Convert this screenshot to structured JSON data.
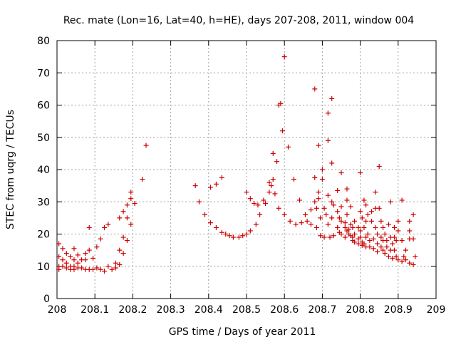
{
  "chart_data": {
    "type": "scatter",
    "title": "Rec. mate (Lon=16, Lat=40, h=HE), days 207-208, 2011, window 004",
    "xlabel": "GPS time / Days of year 2011",
    "ylabel": "STEC from uqrg / TECUs",
    "xlim": [
      208,
      209
    ],
    "ylim": [
      0,
      80
    ],
    "xticks": [
      "208",
      "208.1",
      "208.2",
      "208.3",
      "208.4",
      "208.5",
      "208.6",
      "208.7",
      "208.8",
      "208.9",
      "209"
    ],
    "yticks": [
      "0",
      "10",
      "20",
      "30",
      "40",
      "50",
      "60",
      "70",
      "80"
    ],
    "grid": true,
    "marker": "+",
    "color": "#cc0000",
    "series": [
      {
        "name": "STEC",
        "points": [
          [
            208.005,
            17
          ],
          [
            208.005,
            13
          ],
          [
            208.005,
            10
          ],
          [
            208.005,
            9
          ],
          [
            208.015,
            15.5
          ],
          [
            208.015,
            12
          ],
          [
            208.015,
            10
          ],
          [
            208.025,
            14
          ],
          [
            208.025,
            11
          ],
          [
            208.025,
            9.5
          ],
          [
            208.035,
            13
          ],
          [
            208.035,
            10
          ],
          [
            208.035,
            9
          ],
          [
            208.045,
            15.5
          ],
          [
            208.045,
            12
          ],
          [
            208.045,
            10
          ],
          [
            208.045,
            9
          ],
          [
            208.055,
            13.5
          ],
          [
            208.055,
            11
          ],
          [
            208.055,
            9.5
          ],
          [
            208.065,
            12
          ],
          [
            208.065,
            9.5
          ],
          [
            208.075,
            14
          ],
          [
            208.075,
            12
          ],
          [
            208.075,
            9
          ],
          [
            208.085,
            22
          ],
          [
            208.085,
            15
          ],
          [
            208.085,
            9
          ],
          [
            208.095,
            12.5
          ],
          [
            208.095,
            9
          ],
          [
            208.105,
            16
          ],
          [
            208.105,
            9.5
          ],
          [
            208.115,
            18.5
          ],
          [
            208.115,
            9
          ],
          [
            208.125,
            22
          ],
          [
            208.125,
            8.5
          ],
          [
            208.135,
            23
          ],
          [
            208.135,
            10
          ],
          [
            208.145,
            9
          ],
          [
            208.155,
            11
          ],
          [
            208.155,
            9.5
          ],
          [
            208.165,
            25
          ],
          [
            208.165,
            15
          ],
          [
            208.165,
            10.5
          ],
          [
            208.175,
            27
          ],
          [
            208.175,
            19
          ],
          [
            208.175,
            14
          ],
          [
            208.185,
            29
          ],
          [
            208.185,
            25
          ],
          [
            208.185,
            18
          ],
          [
            208.195,
            33
          ],
          [
            208.195,
            31
          ],
          [
            208.195,
            23
          ],
          [
            208.205,
            29.5
          ],
          [
            208.225,
            37
          ],
          [
            208.235,
            47.5
          ],
          [
            208.365,
            35
          ],
          [
            208.375,
            30
          ],
          [
            208.39,
            26
          ],
          [
            208.405,
            34.5
          ],
          [
            208.405,
            23.5
          ],
          [
            208.42,
            35.5
          ],
          [
            208.42,
            22
          ],
          [
            208.435,
            37.5
          ],
          [
            208.435,
            20.5
          ],
          [
            208.445,
            20
          ],
          [
            208.455,
            19.5
          ],
          [
            208.465,
            19
          ],
          [
            208.48,
            19
          ],
          [
            208.49,
            19.5
          ],
          [
            208.5,
            33
          ],
          [
            208.5,
            20
          ],
          [
            208.51,
            31
          ],
          [
            208.51,
            21
          ],
          [
            208.52,
            29.5
          ],
          [
            208.525,
            23
          ],
          [
            208.53,
            29
          ],
          [
            208.535,
            26
          ],
          [
            208.545,
            30.5
          ],
          [
            208.55,
            29.5
          ],
          [
            208.56,
            36
          ],
          [
            208.56,
            33
          ],
          [
            208.565,
            35
          ],
          [
            208.57,
            45
          ],
          [
            208.57,
            37
          ],
          [
            208.575,
            32.5
          ],
          [
            208.58,
            42.5
          ],
          [
            208.585,
            60
          ],
          [
            208.585,
            28
          ],
          [
            208.59,
            60.5
          ],
          [
            208.595,
            52
          ],
          [
            208.6,
            75
          ],
          [
            208.6,
            26
          ],
          [
            208.61,
            47
          ],
          [
            208.615,
            24
          ],
          [
            208.625,
            37
          ],
          [
            208.63,
            23
          ],
          [
            208.64,
            30.5
          ],
          [
            208.645,
            23.5
          ],
          [
            208.655,
            26
          ],
          [
            208.66,
            24
          ],
          [
            208.67,
            27.5
          ],
          [
            208.67,
            23
          ],
          [
            208.68,
            65
          ],
          [
            208.68,
            37.5
          ],
          [
            208.68,
            30
          ],
          [
            208.685,
            28
          ],
          [
            208.685,
            22
          ],
          [
            208.69,
            47.5
          ],
          [
            208.69,
            33
          ],
          [
            208.69,
            31
          ],
          [
            208.695,
            25
          ],
          [
            208.695,
            19.5
          ],
          [
            208.7,
            40
          ],
          [
            208.7,
            37
          ],
          [
            208.705,
            28
          ],
          [
            208.705,
            19
          ],
          [
            208.71,
            26
          ],
          [
            208.715,
            57.5
          ],
          [
            208.715,
            49
          ],
          [
            208.715,
            32
          ],
          [
            208.715,
            23
          ],
          [
            208.72,
            19
          ],
          [
            208.725,
            62
          ],
          [
            208.725,
            42
          ],
          [
            208.725,
            30
          ],
          [
            208.725,
            25
          ],
          [
            208.73,
            29
          ],
          [
            208.73,
            19.5
          ],
          [
            208.74,
            33.5
          ],
          [
            208.74,
            27
          ],
          [
            208.74,
            22
          ],
          [
            208.745,
            25
          ],
          [
            208.745,
            20.5
          ],
          [
            208.75,
            39
          ],
          [
            208.75,
            28.5
          ],
          [
            208.75,
            24
          ],
          [
            208.75,
            20
          ],
          [
            208.76,
            23.5
          ],
          [
            208.76,
            22
          ],
          [
            208.76,
            19
          ],
          [
            208.765,
            34
          ],
          [
            208.765,
            30.5
          ],
          [
            208.765,
            26
          ],
          [
            208.765,
            21
          ],
          [
            208.77,
            21.5
          ],
          [
            208.77,
            20
          ],
          [
            208.775,
            28.5
          ],
          [
            208.775,
            23
          ],
          [
            208.775,
            19.5
          ],
          [
            208.78,
            22
          ],
          [
            208.78,
            19
          ],
          [
            208.78,
            18
          ],
          [
            208.785,
            24
          ],
          [
            208.785,
            20
          ],
          [
            208.785,
            17.5
          ],
          [
            208.795,
            22
          ],
          [
            208.795,
            18.5
          ],
          [
            208.795,
            17
          ],
          [
            208.8,
            39
          ],
          [
            208.8,
            27
          ],
          [
            208.8,
            21
          ],
          [
            208.8,
            19
          ],
          [
            208.805,
            25
          ],
          [
            208.805,
            17.5
          ],
          [
            208.805,
            16.5
          ],
          [
            208.81,
            30.5
          ],
          [
            208.81,
            22
          ],
          [
            208.81,
            17
          ],
          [
            208.815,
            29
          ],
          [
            208.815,
            24
          ],
          [
            208.815,
            19
          ],
          [
            208.815,
            16
          ],
          [
            208.82,
            26
          ],
          [
            208.82,
            20
          ],
          [
            208.825,
            18
          ],
          [
            208.825,
            16
          ],
          [
            208.83,
            27
          ],
          [
            208.83,
            24
          ],
          [
            208.835,
            18.5
          ],
          [
            208.835,
            15.5
          ],
          [
            208.84,
            33
          ],
          [
            208.84,
            28
          ],
          [
            208.84,
            22
          ],
          [
            208.845,
            20
          ],
          [
            208.845,
            17
          ],
          [
            208.845,
            14.5
          ],
          [
            208.85,
            41
          ],
          [
            208.85,
            28
          ],
          [
            208.855,
            24
          ],
          [
            208.855,
            19
          ],
          [
            208.855,
            16
          ],
          [
            208.86,
            22
          ],
          [
            208.86,
            18
          ],
          [
            208.86,
            15
          ],
          [
            208.865,
            20
          ],
          [
            208.865,
            14
          ],
          [
            208.87,
            18
          ],
          [
            208.87,
            16
          ],
          [
            208.875,
            23
          ],
          [
            208.875,
            13
          ],
          [
            208.88,
            30
          ],
          [
            208.88,
            19
          ],
          [
            208.88,
            15
          ],
          [
            208.885,
            17
          ],
          [
            208.885,
            12.5
          ],
          [
            208.89,
            22
          ],
          [
            208.89,
            19
          ],
          [
            208.89,
            15
          ],
          [
            208.895,
            18
          ],
          [
            208.895,
            13
          ],
          [
            208.9,
            24
          ],
          [
            208.9,
            21
          ],
          [
            208.9,
            12
          ],
          [
            208.91,
            30.5
          ],
          [
            208.91,
            18
          ],
          [
            208.91,
            11.5
          ],
          [
            208.915,
            13
          ],
          [
            208.92,
            15
          ],
          [
            208.92,
            12
          ],
          [
            208.93,
            24
          ],
          [
            208.93,
            21
          ],
          [
            208.93,
            18.5
          ],
          [
            208.93,
            11
          ],
          [
            208.94,
            26
          ],
          [
            208.94,
            18.5
          ],
          [
            208.94,
            10.5
          ],
          [
            208.945,
            13
          ]
        ]
      }
    ]
  }
}
